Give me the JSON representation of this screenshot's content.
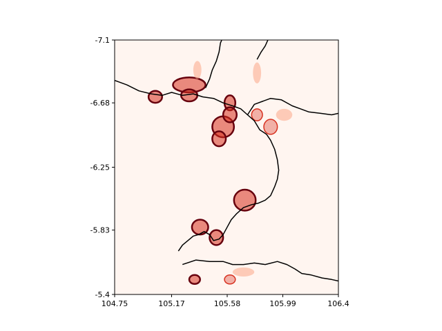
{
  "chart_data": {
    "type": "heatmap",
    "title": "",
    "xlabel": "",
    "ylabel": "",
    "xlim": [
      104.75,
      106.4
    ],
    "ylim": [
      -5.4,
      -7.1
    ],
    "y_axis_inverted": true,
    "x_ticks": [
      104.75,
      105.17,
      105.58,
      105.99,
      106.4
    ],
    "x_tick_labels": [
      "104.75",
      "105.17",
      "105.58",
      "105.99",
      "106.4"
    ],
    "y_ticks": [
      -7.1,
      -6.68,
      -6.25,
      -5.83,
      -5.4
    ],
    "y_tick_labels": [
      "-7.1",
      "-6.68",
      "-6.25",
      "-5.83",
      "-5.4"
    ],
    "grid": false,
    "legend": "none",
    "colormap": "Reds",
    "colors": {
      "background": "#fff5f0",
      "coastline": "#000000",
      "high_intensity": "#67000d",
      "mid_intensity": "#d7301f",
      "low_intensity": "#fcae91"
    },
    "coastline_polylines": [
      [
        [
          104.75,
          -6.83
        ],
        [
          104.84,
          -6.8
        ],
        [
          104.93,
          -6.76
        ],
        [
          105.02,
          -6.74
        ],
        [
          105.1,
          -6.73
        ],
        [
          105.17,
          -6.75
        ],
        [
          105.25,
          -6.73
        ],
        [
          105.33,
          -6.74
        ],
        [
          105.4,
          -6.72
        ],
        [
          105.48,
          -6.71
        ],
        [
          105.55,
          -6.68
        ],
        [
          105.62,
          -6.66
        ],
        [
          105.68,
          -6.64
        ],
        [
          105.73,
          -6.6
        ],
        [
          105.78,
          -6.56
        ],
        [
          105.82,
          -6.5
        ],
        [
          105.87,
          -6.47
        ],
        [
          105.9,
          -6.43
        ],
        [
          105.93,
          -6.37
        ],
        [
          105.95,
          -6.3
        ],
        [
          105.96,
          -6.23
        ],
        [
          105.95,
          -6.17
        ],
        [
          105.93,
          -6.12
        ],
        [
          105.9,
          -6.06
        ],
        [
          105.86,
          -6.03
        ],
        [
          105.81,
          -6.01
        ],
        [
          105.76,
          -6.0
        ],
        [
          105.7,
          -5.98
        ],
        [
          105.65,
          -5.94
        ],
        [
          105.61,
          -5.9
        ],
        [
          105.58,
          -5.85
        ],
        [
          105.55,
          -5.8
        ],
        [
          105.52,
          -5.77
        ],
        [
          105.48,
          -5.76
        ],
        [
          105.45,
          -5.8
        ],
        [
          105.41,
          -5.82
        ],
        [
          105.37,
          -5.8
        ],
        [
          105.33,
          -5.79
        ],
        [
          105.29,
          -5.76
        ],
        [
          105.25,
          -5.73
        ],
        [
          105.22,
          -5.69
        ]
      ],
      [
        [
          105.25,
          -5.6
        ],
        [
          105.35,
          -5.63
        ],
        [
          105.45,
          -5.62
        ],
        [
          105.55,
          -5.62
        ],
        [
          105.62,
          -5.6
        ],
        [
          105.7,
          -5.6
        ],
        [
          105.78,
          -5.61
        ],
        [
          105.86,
          -5.6
        ],
        [
          105.95,
          -5.62
        ],
        [
          106.02,
          -5.6
        ],
        [
          106.08,
          -5.57
        ],
        [
          106.13,
          -5.54
        ],
        [
          106.2,
          -5.53
        ],
        [
          106.28,
          -5.51
        ],
        [
          106.35,
          -5.5
        ],
        [
          106.4,
          -5.49
        ]
      ],
      [
        [
          105.73,
          -6.6
        ],
        [
          105.78,
          -6.67
        ],
        [
          105.84,
          -6.69
        ],
        [
          105.9,
          -6.71
        ],
        [
          105.98,
          -6.7
        ],
        [
          106.06,
          -6.66
        ],
        [
          106.12,
          -6.64
        ],
        [
          106.18,
          -6.62
        ],
        [
          106.27,
          -6.61
        ],
        [
          106.35,
          -6.6
        ],
        [
          106.4,
          -6.61
        ]
      ],
      [
        [
          105.8,
          -6.97
        ],
        [
          105.83,
          -7.02
        ],
        [
          105.86,
          -7.06
        ],
        [
          105.88,
          -7.1
        ]
      ],
      [
        [
          105.42,
          -6.78
        ],
        [
          105.45,
          -6.84
        ],
        [
          105.47,
          -6.9
        ],
        [
          105.5,
          -6.96
        ],
        [
          105.52,
          -7.02
        ],
        [
          105.53,
          -7.08
        ],
        [
          105.54,
          -7.1
        ]
      ]
    ],
    "heat_regions": [
      {
        "lon": 105.05,
        "lat": -6.72,
        "rx": 0.05,
        "ry": 0.04,
        "level": 3
      },
      {
        "lon": 105.3,
        "lat": -6.8,
        "rx": 0.12,
        "ry": 0.05,
        "level": 3
      },
      {
        "lon": 105.3,
        "lat": -6.73,
        "rx": 0.06,
        "ry": 0.04,
        "level": 3
      },
      {
        "lon": 105.6,
        "lat": -6.68,
        "rx": 0.04,
        "ry": 0.05,
        "level": 3
      },
      {
        "lon": 105.55,
        "lat": -6.52,
        "rx": 0.08,
        "ry": 0.07,
        "level": 3
      },
      {
        "lon": 105.6,
        "lat": -6.6,
        "rx": 0.05,
        "ry": 0.05,
        "level": 3
      },
      {
        "lon": 105.52,
        "lat": -6.44,
        "rx": 0.05,
        "ry": 0.05,
        "level": 3
      },
      {
        "lon": 105.71,
        "lat": -6.03,
        "rx": 0.08,
        "ry": 0.07,
        "level": 3
      },
      {
        "lon": 105.38,
        "lat": -5.85,
        "rx": 0.06,
        "ry": 0.05,
        "level": 3
      },
      {
        "lon": 105.5,
        "lat": -5.78,
        "rx": 0.05,
        "ry": 0.05,
        "level": 3
      },
      {
        "lon": 105.34,
        "lat": -5.5,
        "rx": 0.04,
        "ry": 0.03,
        "level": 3
      },
      {
        "lon": 105.6,
        "lat": -5.5,
        "rx": 0.04,
        "ry": 0.03,
        "level": 2
      },
      {
        "lon": 105.9,
        "lat": -6.52,
        "rx": 0.05,
        "ry": 0.05,
        "level": 2
      },
      {
        "lon": 105.8,
        "lat": -6.6,
        "rx": 0.04,
        "ry": 0.04,
        "level": 2
      },
      {
        "lon": 105.36,
        "lat": -6.9,
        "rx": 0.03,
        "ry": 0.06,
        "level": 1
      },
      {
        "lon": 105.8,
        "lat": -6.88,
        "rx": 0.03,
        "ry": 0.07,
        "level": 1
      },
      {
        "lon": 106.0,
        "lat": -6.6,
        "rx": 0.06,
        "ry": 0.04,
        "level": 1
      },
      {
        "lon": 105.7,
        "lat": -5.55,
        "rx": 0.08,
        "ry": 0.03,
        "level": 1
      }
    ]
  }
}
